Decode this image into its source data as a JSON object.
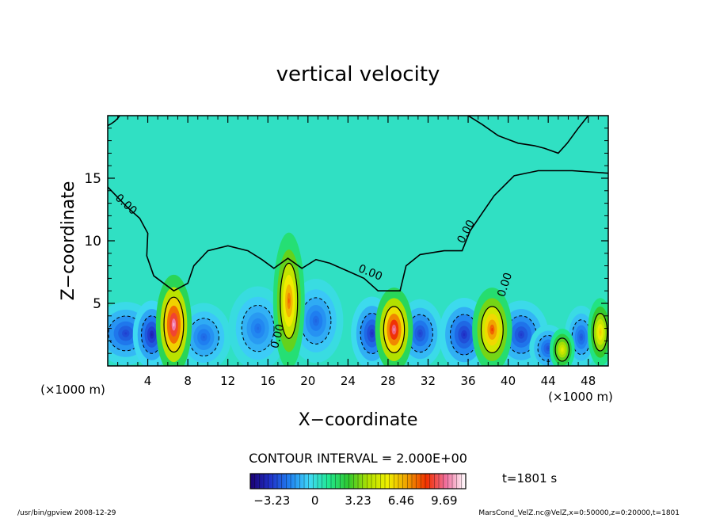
{
  "chart_data": {
    "type": "heatmap",
    "title": "vertical velocity",
    "xlabel": "X−coordinate",
    "ylabel": "Z−coordinate",
    "x_unit": "(×1000 m)",
    "y_unit": "(×1000 m)",
    "xlim": [
      0,
      50
    ],
    "ylim": [
      0,
      20
    ],
    "xticks": [
      4,
      8,
      12,
      16,
      20,
      24,
      28,
      32,
      36,
      40,
      44,
      48
    ],
    "xtick_labels": [
      "4",
      "8",
      "12",
      "16",
      "20",
      "24",
      "28",
      "32",
      "36",
      "40",
      "44",
      "48"
    ],
    "yticks": [
      5,
      10,
      15
    ],
    "ytick_labels": [
      "5",
      "10",
      "15"
    ],
    "contour_interval_text": "CONTOUR INTERVAL = 2.000E+00",
    "time_text": "t=1801 s",
    "contour_labels": [
      {
        "text": "0.00",
        "x": 1.6,
        "z": 12.7,
        "angle": 42
      },
      {
        "text": "0.00",
        "x": 17.3,
        "z": 2.3,
        "angle": -75
      },
      {
        "text": "0.00",
        "x": 26.1,
        "z": 7.2,
        "angle": 22
      },
      {
        "text": "0.00",
        "x": 36.1,
        "z": 10.6,
        "angle": -62
      },
      {
        "text": "0.00",
        "x": 40.0,
        "z": 6.4,
        "angle": -72
      }
    ],
    "updrafts": [
      {
        "x": 6.6,
        "z": 3.3,
        "peak": 11.0,
        "sx": 0.85,
        "sz": 1.9
      },
      {
        "x": 18.1,
        "z": 5.2,
        "peak": 8.0,
        "sx": 0.75,
        "sz": 2.6
      },
      {
        "x": 28.6,
        "z": 2.9,
        "peak": 10.5,
        "sx": 0.9,
        "sz": 1.6
      },
      {
        "x": 38.4,
        "z": 2.9,
        "peak": 8.5,
        "sx": 0.95,
        "sz": 1.6
      },
      {
        "x": 45.4,
        "z": 1.3,
        "peak": 5.5,
        "sx": 0.6,
        "sz": 0.8
      },
      {
        "x": 49.2,
        "z": 2.7,
        "peak": 6.5,
        "sx": 0.6,
        "sz": 1.3
      }
    ],
    "downdrafts": [
      {
        "x": 1.8,
        "z": 2.6,
        "peak": -3.2,
        "sx": 1.5,
        "sz": 1.2
      },
      {
        "x": 4.4,
        "z": 2.5,
        "peak": -4.0,
        "sx": 0.9,
        "sz": 1.3
      },
      {
        "x": 9.6,
        "z": 2.3,
        "peak": -2.5,
        "sx": 1.3,
        "sz": 1.3
      },
      {
        "x": 15.0,
        "z": 3.0,
        "peak": -2.3,
        "sx": 1.4,
        "sz": 1.6
      },
      {
        "x": 20.8,
        "z": 3.6,
        "peak": -2.5,
        "sx": 1.3,
        "sz": 1.6
      },
      {
        "x": 26.4,
        "z": 2.6,
        "peak": -3.6,
        "sx": 1.0,
        "sz": 1.4
      },
      {
        "x": 31.2,
        "z": 2.6,
        "peak": -3.2,
        "sx": 1.1,
        "sz": 1.3
      },
      {
        "x": 35.6,
        "z": 2.5,
        "peak": -3.6,
        "sx": 1.2,
        "sz": 1.4
      },
      {
        "x": 41.3,
        "z": 2.5,
        "peak": -3.3,
        "sx": 1.3,
        "sz": 1.3
      },
      {
        "x": 44.0,
        "z": 1.4,
        "peak": -3.0,
        "sx": 0.9,
        "sz": 0.9
      },
      {
        "x": 47.3,
        "z": 2.3,
        "peak": -2.8,
        "sx": 0.8,
        "sz": 1.2
      }
    ],
    "colorbar": {
      "min": -4.85,
      "max": 11.3,
      "tick_values": [
        -3.23,
        0,
        3.23,
        6.46,
        9.69
      ],
      "tick_labels": [
        "−3.23",
        "0",
        "3.23",
        "6.46",
        "9.69"
      ],
      "colors": [
        "#1a0070",
        "#2030c8",
        "#1f7ff0",
        "#40d8f8",
        "#20e890",
        "#30c830",
        "#b0e000",
        "#f0f000",
        "#f0a000",
        "#f03000",
        "#f070a0",
        "#ffffff"
      ]
    },
    "zero_line_color": "#000000"
  },
  "footer": {
    "left": "/usr/bin/gpview   2008-12-29",
    "right": "MarsCond_VelZ.nc@VelZ,x=0:50000,z=0:20000,t=1801"
  }
}
